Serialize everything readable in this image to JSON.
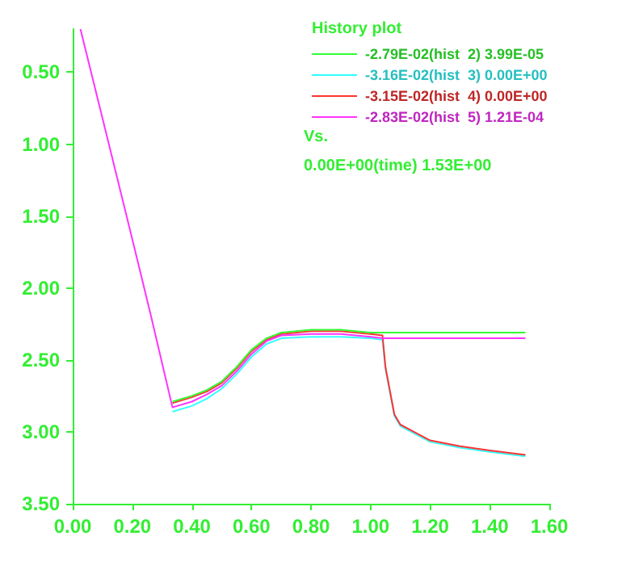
{
  "chart_data": {
    "type": "line",
    "title": "History plot",
    "x": [
      0.026,
      0.1,
      0.2,
      0.26,
      0.335,
      0.4,
      0.45,
      0.5,
      0.55,
      0.6,
      0.65,
      0.7,
      0.8,
      0.9,
      1.0,
      1.04,
      1.05,
      1.08,
      1.1,
      1.2,
      1.3,
      1.4,
      1.52
    ],
    "series": [
      {
        "name": "-2.79E-02(hist  2) 3.99E-05",
        "color": "#33ff33",
        "values": [
          null,
          null,
          null,
          null,
          2.79,
          2.75,
          2.71,
          2.65,
          2.55,
          2.43,
          2.35,
          2.31,
          2.29,
          2.29,
          2.31,
          2.31,
          2.31,
          2.31,
          2.31,
          2.31,
          2.31,
          2.31,
          2.31
        ]
      },
      {
        "name": "-3.16E-02(hist  3) 0.00E+00",
        "color": "#33ffff",
        "values": [
          null,
          null,
          null,
          null,
          2.86,
          2.82,
          2.77,
          2.7,
          2.6,
          2.48,
          2.39,
          2.35,
          2.34,
          2.34,
          2.35,
          2.36,
          2.56,
          2.89,
          2.96,
          3.07,
          3.11,
          3.14,
          3.17
        ]
      },
      {
        "name": "-3.15E-02(hist  4) 0.00E+00",
        "color": "#ff3333",
        "values": [
          null,
          null,
          null,
          null,
          2.8,
          2.76,
          2.72,
          2.66,
          2.56,
          2.44,
          2.36,
          2.32,
          2.3,
          2.3,
          2.32,
          2.33,
          2.55,
          2.88,
          2.95,
          3.06,
          3.1,
          3.13,
          3.16
        ]
      },
      {
        "name": "-2.83E-02(hist  5) 1.21E-04",
        "color": "#ff33ff",
        "values": [
          0.2,
          0.82,
          1.66,
          2.17,
          2.83,
          2.79,
          2.74,
          2.68,
          2.58,
          2.46,
          2.37,
          2.33,
          2.32,
          2.32,
          2.34,
          2.35,
          2.35,
          2.35,
          2.35,
          2.35,
          2.35,
          2.35,
          2.35
        ]
      }
    ],
    "annotations": [
      "Vs.",
      "0.00E+00(time) 1.53E+00"
    ],
    "xlim": [
      0,
      1.6
    ],
    "xticks": [
      {
        "value": 0,
        "label": "0.00"
      },
      {
        "value": 0.2,
        "label": "0.20"
      },
      {
        "value": 0.4,
        "label": "0.40"
      },
      {
        "value": 0.6,
        "label": "0.60"
      },
      {
        "value": 0.8,
        "label": "0.80"
      },
      {
        "value": 1,
        "label": "1.00"
      },
      {
        "value": 1.2,
        "label": "1.20"
      },
      {
        "value": 1.4,
        "label": "1.40"
      },
      {
        "value": 1.6,
        "label": "1.60"
      }
    ],
    "ylim": [
      3.5,
      0.2
    ],
    "yticks": [
      {
        "value": 0.5,
        "label": "0.50"
      },
      {
        "value": 1,
        "label": "1.00"
      },
      {
        "value": 1.5,
        "label": "1.50"
      },
      {
        "value": 2,
        "label": "2.00"
      },
      {
        "value": 2.5,
        "label": "2.50"
      },
      {
        "value": 3,
        "label": "3.00"
      },
      {
        "value": 3.5,
        "label": "3.50"
      }
    ],
    "grid": false,
    "legend": "top right",
    "marker": "none",
    "line_style": "solid"
  }
}
